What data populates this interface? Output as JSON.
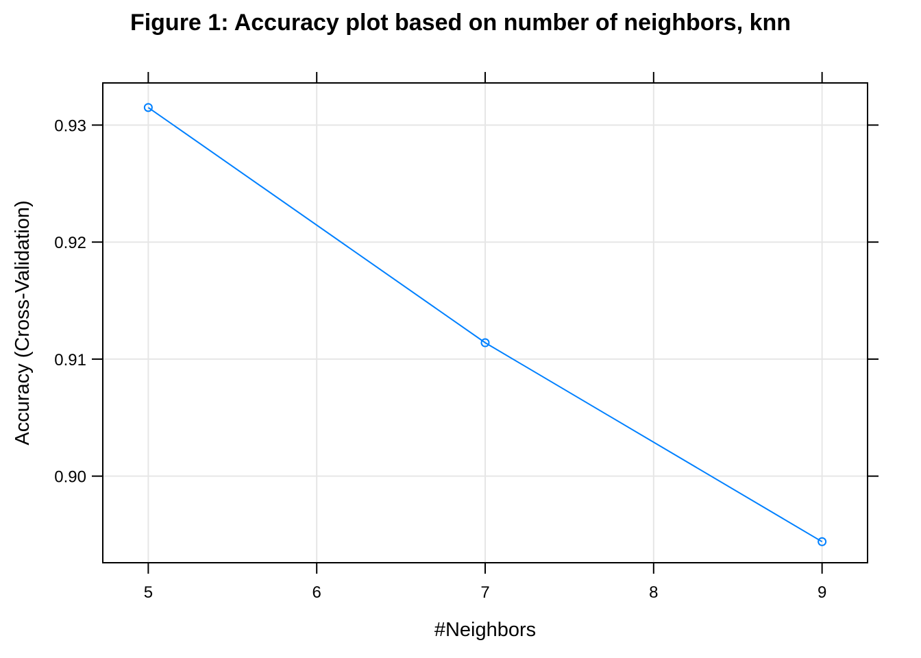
{
  "chart_data": {
    "type": "line",
    "title": "Figure 1: Accuracy plot based on number of neighbors, knn",
    "xlabel": "#Neighbors",
    "ylabel": "Accuracy (Cross-Validation)",
    "x": [
      5,
      7,
      9
    ],
    "series": [
      {
        "values": [
          0.9315,
          0.9114,
          0.8944
        ],
        "color": "#0080ff",
        "marker": "open-circle"
      }
    ],
    "xlim": [
      4.73,
      9.27
    ],
    "ylim": [
      0.8926,
      0.9336
    ],
    "xticks": [
      5,
      6,
      7,
      8,
      9
    ],
    "xtick_labels": [
      "5",
      "6",
      "7",
      "8",
      "9"
    ],
    "yticks": [
      0.9,
      0.91,
      0.92,
      0.93
    ],
    "ytick_labels": [
      "0.90",
      "0.91",
      "0.92",
      "0.93"
    ],
    "grid": true,
    "grid_color": "#e6e6e6",
    "frame_color": "#000000"
  }
}
